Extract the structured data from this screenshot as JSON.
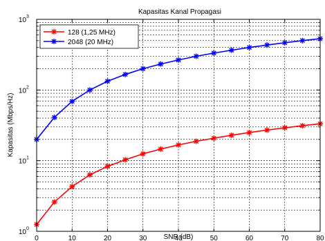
{
  "chart_data": {
    "type": "line",
    "title": "Kapasitas Kanal Propagasi",
    "xlabel": "SNR (dB)",
    "ylabel": "Kapasitas (Mbps/Hz)",
    "xlim": [
      0,
      80
    ],
    "ylim": [
      1,
      1000
    ],
    "yscale": "log",
    "grid": true,
    "legend_position": "top-left",
    "x_ticks": [
      "0",
      "10",
      "20",
      "30",
      "40",
      "50",
      "60",
      "70",
      "80"
    ],
    "y_ticks": [
      {
        "base": "10",
        "exp": "0"
      },
      {
        "base": "10",
        "exp": "1"
      },
      {
        "base": "10",
        "exp": "2"
      },
      {
        "base": "10",
        "exp": "3"
      }
    ],
    "x": [
      0,
      5,
      10,
      15,
      20,
      25,
      30,
      35,
      40,
      45,
      50,
      55,
      60,
      65,
      70,
      75,
      80
    ],
    "series": [
      {
        "name": "128 (1,25 MHz)",
        "color": "#ff0000",
        "values": [
          1.25,
          2.6,
          4.3,
          6.3,
          8.3,
          10.3,
          12.5,
          14.6,
          16.7,
          18.8,
          20.8,
          22.9,
          25.0,
          27.1,
          29.2,
          31.2,
          33.3
        ]
      },
      {
        "name": "2048 (20 MHz)",
        "color": "#0000ff",
        "values": [
          20,
          41,
          69,
          100,
          133,
          166,
          200,
          233,
          266,
          300,
          333,
          366,
          400,
          433,
          466,
          500,
          533
        ]
      }
    ]
  }
}
